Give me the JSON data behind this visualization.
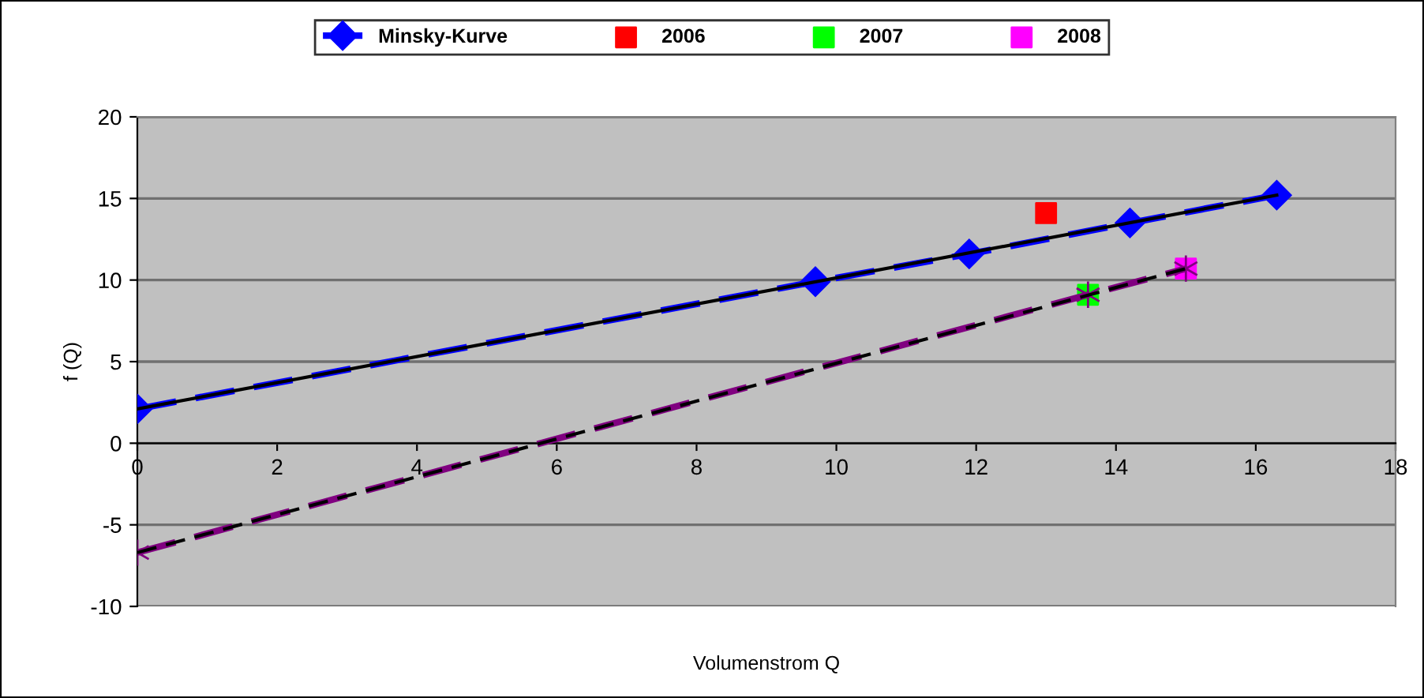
{
  "chart_data": {
    "type": "line",
    "xlabel": "Volumenstrom Q",
    "ylabel": "f (Q)",
    "xlim": [
      0,
      18
    ],
    "xticks": [
      0,
      2,
      4,
      6,
      8,
      10,
      12,
      14,
      16,
      18
    ],
    "ylim": [
      -10,
      20
    ],
    "yticks": [
      -10,
      -5,
      0,
      5,
      10,
      15,
      20
    ],
    "grid": "y",
    "legend": "top",
    "series": [
      {
        "name": "Minsky-Kurve",
        "color": "#0000ff",
        "marker": "diamond",
        "line_style": "dashed",
        "x": [
          0,
          9.7,
          11.9,
          14.2,
          16.3
        ],
        "values": [
          2.1,
          9.9,
          11.6,
          13.5,
          15.2
        ]
      },
      {
        "name": "2006",
        "type": "scatter",
        "color": "#ff0000",
        "marker": "square",
        "x": [
          13.0
        ],
        "values": [
          14.1
        ]
      },
      {
        "name": "2007",
        "type": "scatter",
        "color": "#00ff00",
        "marker": "square",
        "x": [
          13.6
        ],
        "values": [
          9.1
        ]
      },
      {
        "name": "2008",
        "type": "scatter",
        "color": "#ff00ff",
        "marker": "square",
        "x": [
          15.0
        ],
        "values": [
          10.7
        ]
      },
      {
        "color": "#800080",
        "marker": "cross",
        "line_style": "dashed",
        "x": [
          0,
          13.6,
          15.0
        ],
        "values": [
          -6.7,
          9.1,
          10.7
        ]
      },
      {
        "color": "#000000",
        "marker": "none",
        "line_style": "solid",
        "x": [
          0,
          16.3
        ],
        "values": [
          2.1,
          15.2
        ]
      },
      {
        "color": "#000000",
        "marker": "none",
        "line_style": "dashed",
        "x": [
          0,
          15.0
        ],
        "values": [
          -6.7,
          10.7
        ]
      }
    ]
  }
}
